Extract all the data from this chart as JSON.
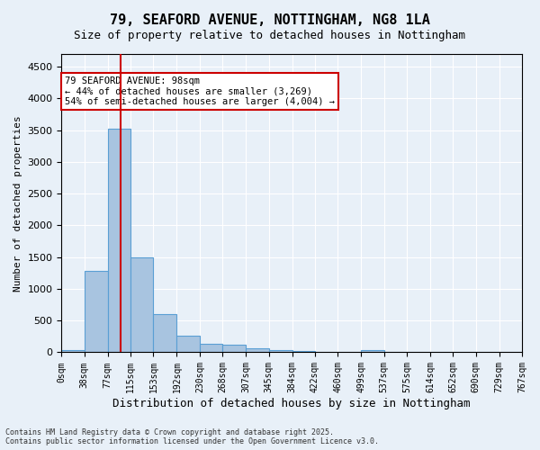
{
  "title_line1": "79, SEAFORD AVENUE, NOTTINGHAM, NG8 1LA",
  "title_line2": "Size of property relative to detached houses in Nottingham",
  "xlabel": "Distribution of detached houses by size in Nottingham",
  "ylabel": "Number of detached properties",
  "bar_color": "#a8c4e0",
  "bar_edge_color": "#5a9fd4",
  "background_color": "#e8f0f8",
  "grid_color": "#ffffff",
  "vline_color": "#cc0000",
  "vline_x": 98,
  "annotation_text": "79 SEAFORD AVENUE: 98sqm\n← 44% of detached houses are smaller (3,269)\n54% of semi-detached houses are larger (4,004) →",
  "annotation_box_color": "#ffffff",
  "annotation_edge_color": "#cc0000",
  "bin_edges": [
    0,
    38,
    77,
    115,
    153,
    192,
    230,
    268,
    307,
    345,
    384,
    422,
    460,
    499,
    537,
    575,
    614,
    652,
    690,
    729,
    767
  ],
  "bar_heights": [
    30,
    1280,
    3530,
    1490,
    600,
    260,
    130,
    120,
    65,
    30,
    15,
    0,
    0,
    40,
    0,
    0,
    0,
    0,
    0,
    0
  ],
  "ylim": [
    0,
    4700
  ],
  "yticks": [
    0,
    500,
    1000,
    1500,
    2000,
    2500,
    3000,
    3500,
    4000,
    4500
  ],
  "footer_text": "Contains HM Land Registry data © Crown copyright and database right 2025.\nContains public sector information licensed under the Open Government Licence v3.0.",
  "tick_labels": [
    "0sqm",
    "38sqm",
    "77sqm",
    "115sqm",
    "153sqm",
    "192sqm",
    "230sqm",
    "268sqm",
    "307sqm",
    "345sqm",
    "384sqm",
    "422sqm",
    "460sqm",
    "499sqm",
    "537sqm",
    "575sqm",
    "614sqm",
    "652sqm",
    "690sqm",
    "729sqm",
    "767sqm"
  ]
}
